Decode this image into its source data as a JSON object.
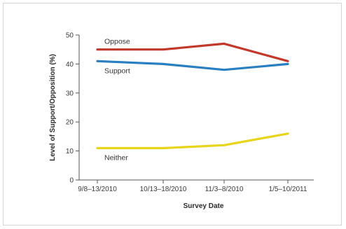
{
  "chart_data": {
    "type": "line",
    "title": "",
    "xlabel": "Survey Date",
    "ylabel": "Level of Support/Opposition (%)",
    "categories": [
      "9/8–13/2010",
      "10/13–18/2010",
      "11/3–8/2010",
      "1/5–10/2011"
    ],
    "ylim": [
      0,
      50
    ],
    "yticks": [
      "0",
      "10",
      "20",
      "30",
      "40",
      "50"
    ],
    "grid": false,
    "legend": "none",
    "series": [
      {
        "name": "Oppose",
        "values": [
          45,
          45,
          47,
          41
        ],
        "color": "#c0392b"
      },
      {
        "name": "Support",
        "values": [
          41,
          40,
          38,
          40
        ],
        "color": "#2a7fc1"
      },
      {
        "name": "Neither",
        "values": [
          11,
          11,
          12,
          16
        ],
        "color": "#e8d41a"
      }
    ]
  }
}
